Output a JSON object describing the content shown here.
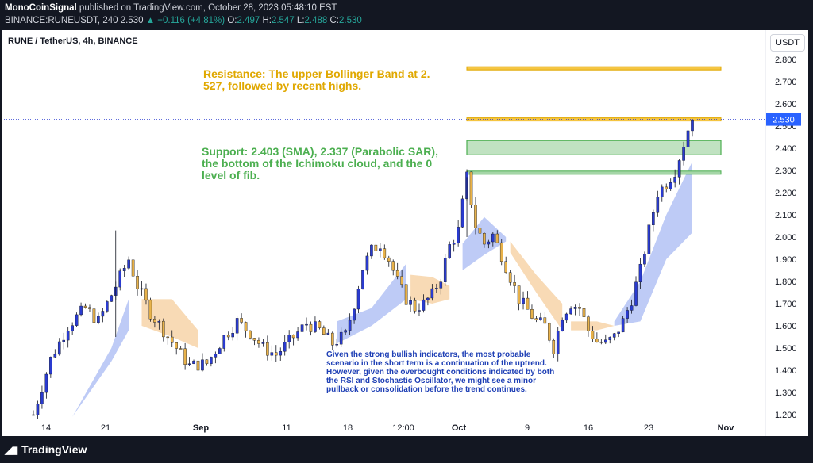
{
  "header": {
    "author": "MonoCoinSignal",
    "published_text": "published on TradingView.com, October 28, 2023 05:48:10 EST",
    "ticker": "BINANCE:RUNEUSDT, 240",
    "last": "2.530",
    "change": "▲ +0.116 (+4.81%)",
    "o_label": "O:",
    "o": "2.497",
    "h_label": "H:",
    "h": "2.547",
    "l_label": "L:",
    "l": "2.488",
    "c_label": "C:",
    "c": "2.530"
  },
  "symbol_title": "RUNE / TetherUS, 4h, BINANCE",
  "currency_button": "USDT",
  "annotations": {
    "resistance": "Resistance: The upper Bollinger Band at 2. 527, followed by recent highs.",
    "support": "Support: 2.403 (SMA), 2.337 (Parabolic SAR), the bottom of the Ichimoku cloud, and the 0 level of fib.",
    "scenario": "Given the strong bullish indicators, the most probable scenario in the short term is a continuation of the uptrend. However, given the overbought conditions indicated by both the RSI and Stochastic Oscillator, we might see a minor pullback or consolidation before the trend continues."
  },
  "footer": {
    "brand": "TradingView"
  },
  "colors": {
    "up": "#26a69a",
    "down": "#ef5350",
    "candle_up_body": "#2a3bd0",
    "candle_wick": "#131722",
    "resistance": "#e0a800",
    "support": "#4caf50",
    "cloud_bull": "#b3c2f5",
    "cloud_bear": "#f7d3a8"
  },
  "chart_data": {
    "type": "candlestick",
    "title": "RUNE / TetherUS, 4h, BINANCE",
    "y_ticks": [
      "2.800",
      "2.700",
      "2.600",
      "2.500",
      "2.400",
      "2.300",
      "2.200",
      "2.100",
      "2.000",
      "1.900",
      "1.800",
      "1.700",
      "1.600",
      "1.500",
      "1.400",
      "1.300",
      "1.200"
    ],
    "ylim": [
      1.16,
      2.86
    ],
    "x_ticks": [
      "14",
      "21",
      "Sep",
      "11",
      "18",
      "12:00",
      "Oct",
      "9",
      "16",
      "23",
      "Nov"
    ],
    "last_price_label": "2.530",
    "resistance_lines": [
      2.76,
      2.53
    ],
    "support_zone": [
      2.37,
      2.435
    ],
    "support_line": 2.29,
    "price_path": [
      [
        0,
        1.2
      ],
      [
        4,
        1.45
      ],
      [
        8,
        1.6
      ],
      [
        12,
        1.68
      ],
      [
        15,
        1.62
      ],
      [
        18,
        1.74
      ],
      [
        20,
        1.82
      ],
      [
        22,
        1.9
      ],
      [
        24,
        1.78
      ],
      [
        27,
        1.66
      ],
      [
        30,
        1.58
      ],
      [
        33,
        1.5
      ],
      [
        36,
        1.42
      ],
      [
        40,
        1.43
      ],
      [
        44,
        1.55
      ],
      [
        47,
        1.62
      ],
      [
        50,
        1.57
      ],
      [
        53,
        1.5
      ],
      [
        56,
        1.47
      ],
      [
        60,
        1.55
      ],
      [
        63,
        1.61
      ],
      [
        66,
        1.58
      ],
      [
        69,
        1.52
      ],
      [
        72,
        1.56
      ],
      [
        74,
        1.7
      ],
      [
        76,
        1.86
      ],
      [
        78,
        1.94
      ],
      [
        80,
        1.97
      ],
      [
        82,
        1.9
      ],
      [
        84,
        1.8
      ],
      [
        86,
        1.72
      ],
      [
        88,
        1.68
      ],
      [
        90,
        1.7
      ],
      [
        92,
        1.74
      ],
      [
        94,
        1.82
      ],
      [
        96,
        1.96
      ],
      [
        98,
        2.03
      ],
      [
        100,
        2.27
      ],
      [
        102,
        2.05
      ],
      [
        104,
        1.97
      ],
      [
        106,
        2.01
      ],
      [
        108,
        1.92
      ],
      [
        110,
        1.82
      ],
      [
        112,
        1.72
      ],
      [
        114,
        1.67
      ],
      [
        116,
        1.62
      ],
      [
        118,
        1.6
      ],
      [
        120,
        1.5
      ],
      [
        122,
        1.65
      ],
      [
        124,
        1.7
      ],
      [
        126,
        1.68
      ],
      [
        128,
        1.58
      ],
      [
        130,
        1.53
      ],
      [
        132,
        1.52
      ],
      [
        134,
        1.55
      ],
      [
        136,
        1.62
      ],
      [
        138,
        1.72
      ],
      [
        140,
        1.85
      ],
      [
        142,
        2.03
      ],
      [
        144,
        2.2
      ],
      [
        146,
        2.24
      ],
      [
        148,
        2.3
      ],
      [
        150,
        2.42
      ],
      [
        152,
        2.55
      ]
    ],
    "cloud_segments": [
      {
        "type": "bull",
        "points": [
          [
            9,
            1.19
          ],
          [
            18,
            1.5
          ],
          [
            22,
            1.72
          ]
        ],
        "lower": [
          [
            9,
            1.19
          ],
          [
            18,
            1.44
          ],
          [
            22,
            1.58
          ]
        ]
      },
      {
        "type": "bear",
        "points": [
          [
            25,
            1.72
          ],
          [
            32,
            1.72
          ],
          [
            38,
            1.58
          ]
        ],
        "lower": [
          [
            25,
            1.6
          ],
          [
            32,
            1.55
          ],
          [
            38,
            1.5
          ]
        ]
      },
      {
        "type": "bull",
        "points": [
          [
            70,
            1.62
          ],
          [
            78,
            1.68
          ],
          [
            86,
            1.88
          ]
        ],
        "lower": [
          [
            70,
            1.52
          ],
          [
            78,
            1.6
          ],
          [
            86,
            1.72
          ]
        ]
      },
      {
        "type": "bear",
        "points": [
          [
            87,
            1.83
          ],
          [
            92,
            1.82
          ],
          [
            96,
            1.78
          ]
        ],
        "lower": [
          [
            87,
            1.72
          ],
          [
            92,
            1.7
          ],
          [
            96,
            1.72
          ]
        ]
      },
      {
        "type": "bull",
        "points": [
          [
            99,
            1.97
          ],
          [
            104,
            2.09
          ],
          [
            109,
            2.0
          ]
        ],
        "lower": [
          [
            99,
            1.85
          ],
          [
            104,
            1.92
          ],
          [
            109,
            1.98
          ]
        ]
      },
      {
        "type": "bear",
        "points": [
          [
            110,
            1.98
          ],
          [
            116,
            1.83
          ],
          [
            122,
            1.7
          ]
        ],
        "lower": [
          [
            110,
            1.93
          ],
          [
            116,
            1.75
          ],
          [
            122,
            1.58
          ]
        ]
      },
      {
        "type": "bear",
        "points": [
          [
            124,
            1.62
          ],
          [
            130,
            1.62
          ],
          [
            134,
            1.6
          ]
        ],
        "lower": [
          [
            124,
            1.58
          ],
          [
            130,
            1.58
          ],
          [
            134,
            1.6
          ]
        ]
      },
      {
        "type": "bull",
        "points": [
          [
            134,
            1.62
          ],
          [
            140,
            1.8
          ],
          [
            146,
            2.1
          ],
          [
            152,
            2.34
          ]
        ],
        "lower": [
          [
            134,
            1.6
          ],
          [
            140,
            1.62
          ],
          [
            146,
            1.9
          ],
          [
            152,
            2.02
          ]
        ]
      }
    ]
  }
}
